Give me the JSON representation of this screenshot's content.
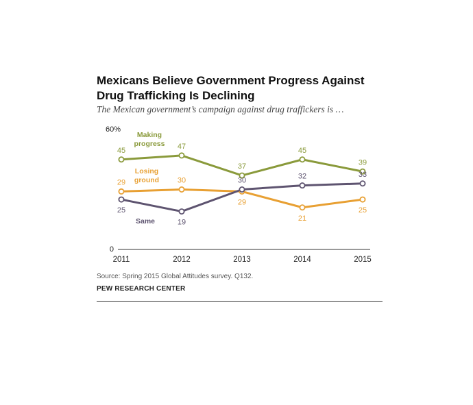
{
  "header": {
    "title": "Mexicans Believe Government Progress Against Drug Trafficking Is Declining",
    "subtitle": "The Mexican government’s campaign against drug traffickers is …"
  },
  "footer": {
    "source": "Source: Spring 2015 Global Attitudes survey. Q132.",
    "brand": "PEW RESEARCH CENTER"
  },
  "chart_data": {
    "type": "line",
    "title": "Mexicans Believe Government Progress Against Drug Trafficking Is Declining",
    "subtitle": "The Mexican government’s campaign against drug traffickers is …",
    "x": [
      "2011",
      "2012",
      "2013",
      "2014",
      "2015"
    ],
    "ylim": [
      0,
      60
    ],
    "y_tick_labels": [
      "60%",
      "0"
    ],
    "grid": false,
    "legend": "inline labels",
    "series": [
      {
        "name": "Making progress",
        "label_lines": [
          "Making",
          "progress"
        ],
        "color": "#8a9a3b",
        "values": [
          45,
          47,
          37,
          45,
          39
        ]
      },
      {
        "name": "Losing ground",
        "label_lines": [
          "Losing",
          "ground"
        ],
        "color": "#e8a033",
        "values": [
          29,
          30,
          29,
          21,
          25
        ]
      },
      {
        "name": "Same",
        "label_lines": [
          "Same"
        ],
        "color": "#5e5470",
        "values": [
          25,
          19,
          30,
          32,
          33
        ]
      }
    ]
  }
}
